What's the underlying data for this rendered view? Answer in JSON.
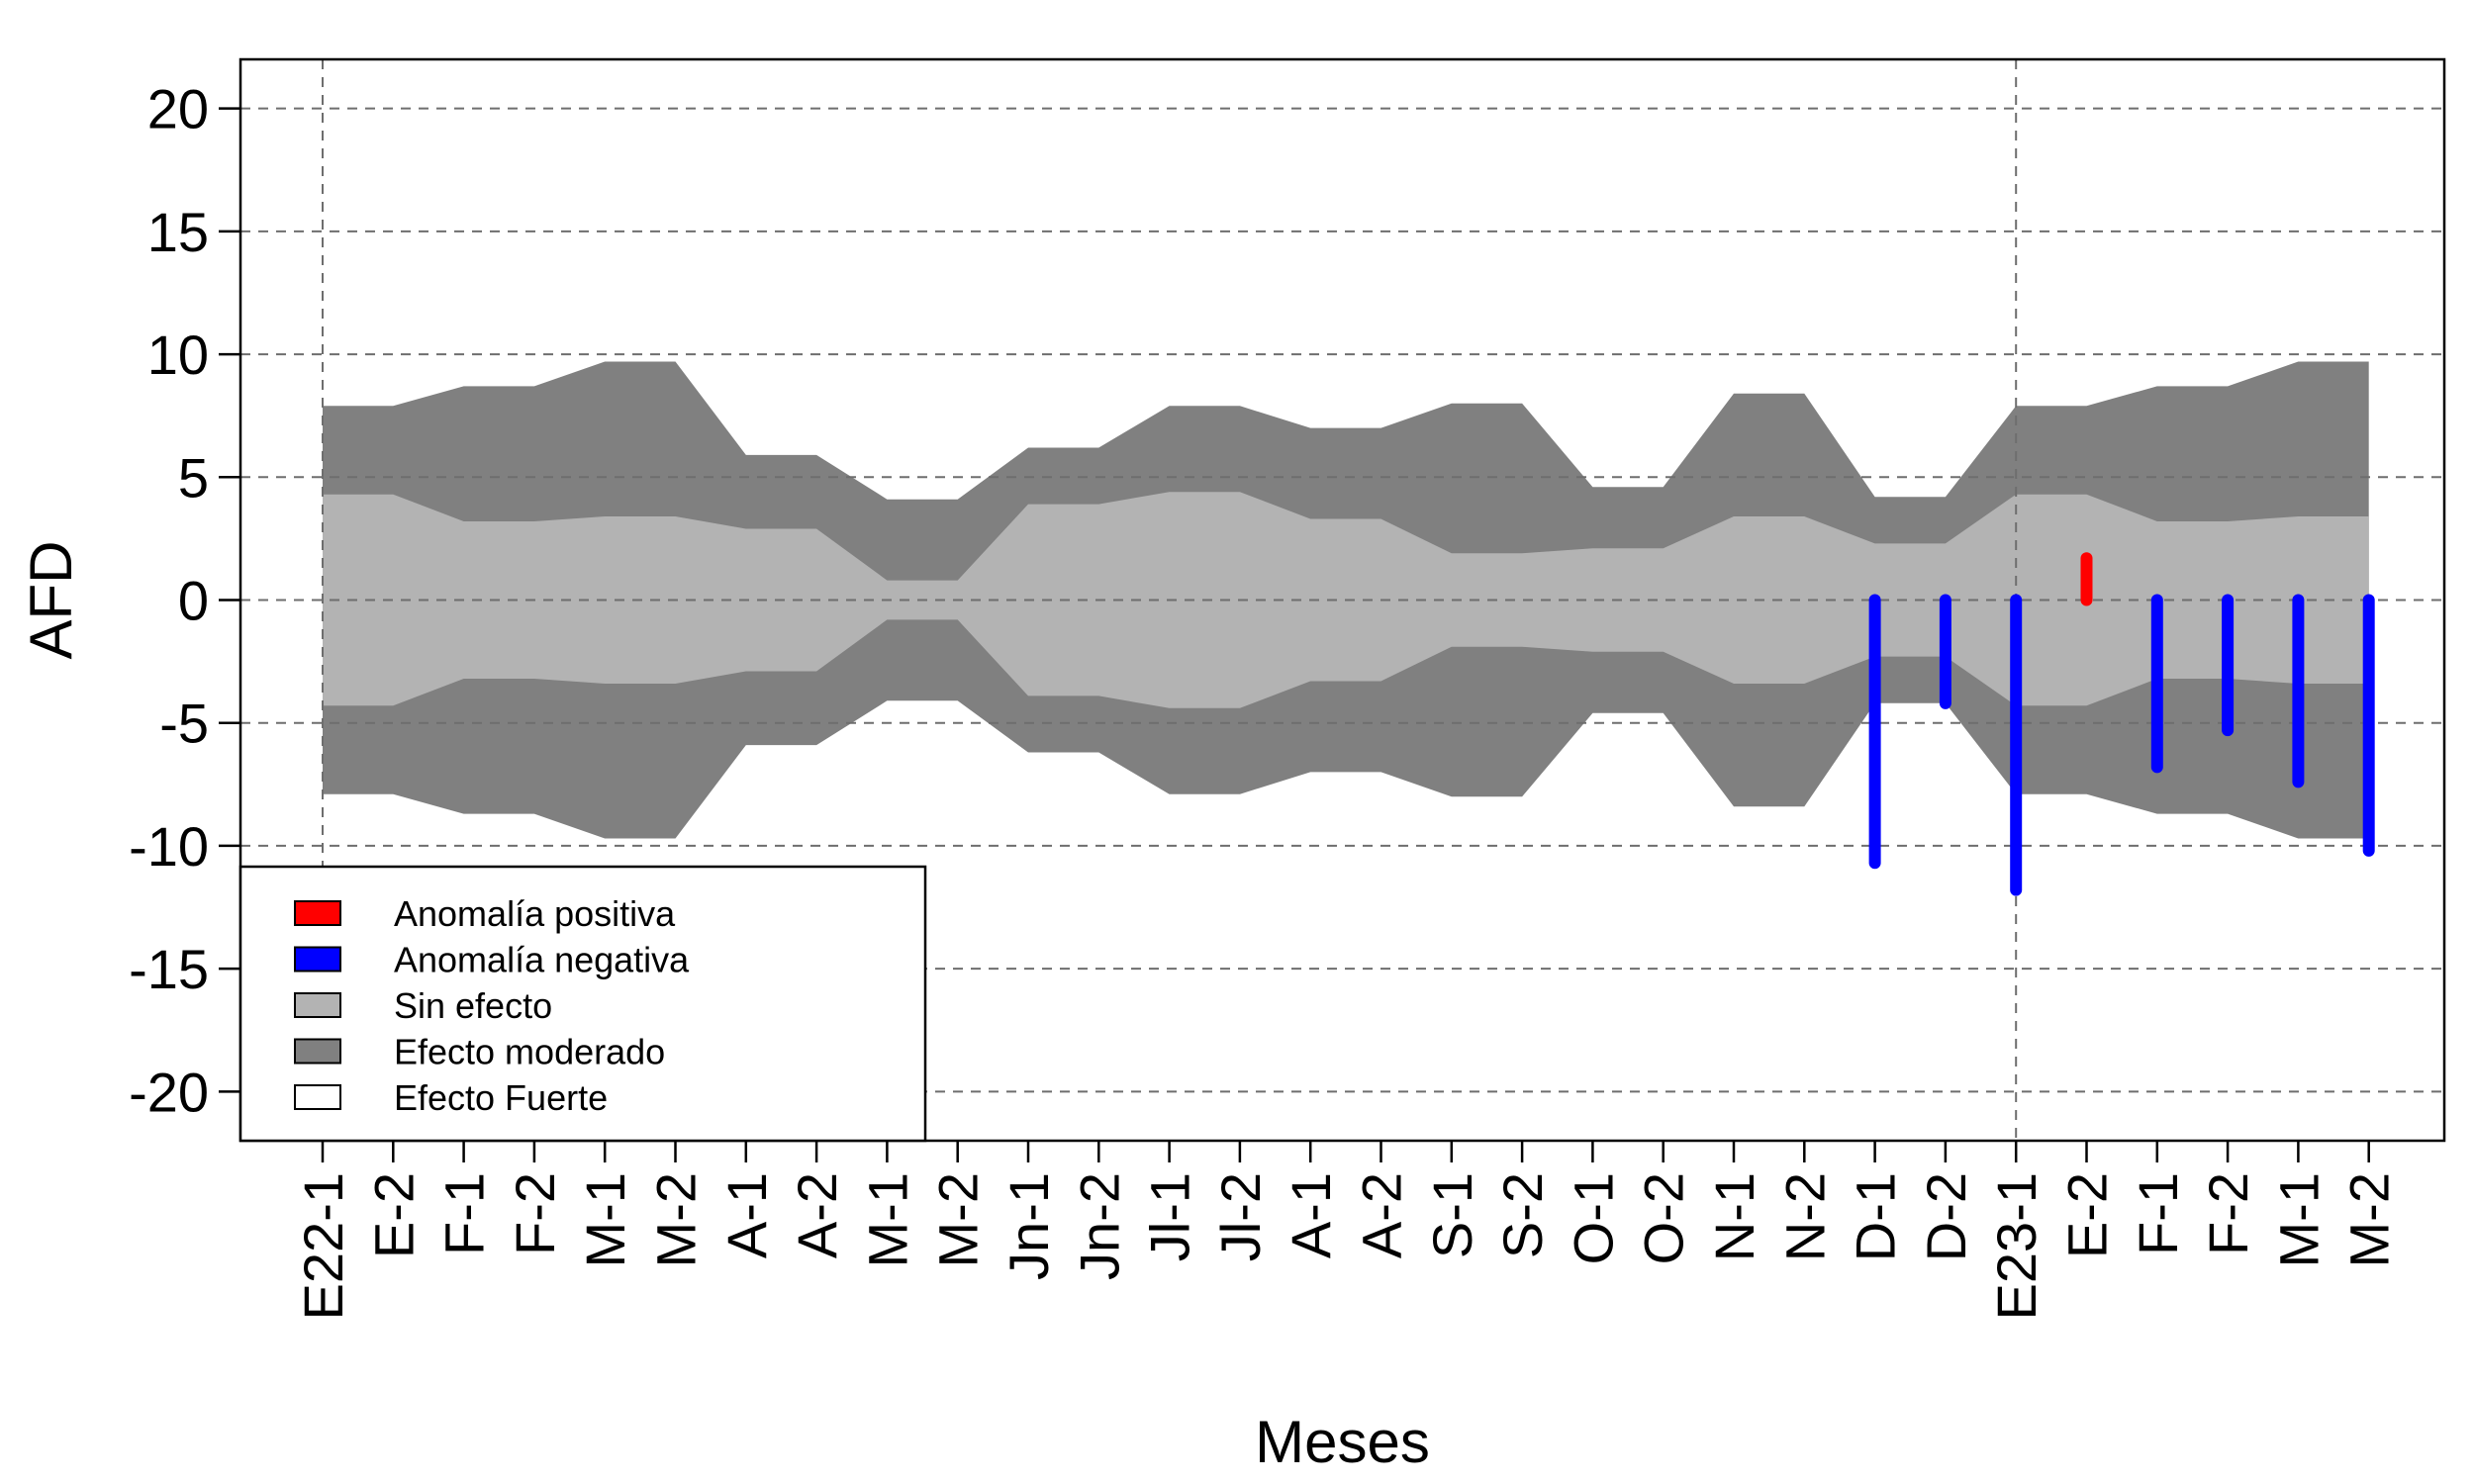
{
  "chart_data": {
    "type": "area",
    "xlabel": "Meses",
    "ylabel": "AFD",
    "ylim": [
      -22,
      22
    ],
    "yticks": [
      -20,
      -15,
      -10,
      -5,
      0,
      5,
      10,
      15,
      20
    ],
    "ytick_labels": [
      "-20",
      "-15",
      "-10",
      "-5",
      "0",
      "5",
      "10",
      "15",
      "20"
    ],
    "grid": "dashed",
    "categories": [
      "E22-1",
      "E-2",
      "F-1",
      "F-2",
      "M-1",
      "M-2",
      "A-1",
      "A-2",
      "M-1",
      "M-2",
      "Jn-1",
      "Jn-2",
      "Jl-1",
      "Jl-2",
      "A-1",
      "A-2",
      "S-1",
      "S-2",
      "O-1",
      "O-2",
      "N-1",
      "N-2",
      "D-1",
      "D-2",
      "E23-1",
      "E-2",
      "F-1",
      "F-2",
      "M-1",
      "M-2"
    ],
    "vertical_reference_lines": [
      "E22-1",
      "E23-1"
    ],
    "bands": {
      "sin_efecto": [
        4.3,
        4.3,
        3.2,
        3.2,
        3.4,
        3.4,
        2.9,
        2.9,
        0.8,
        0.8,
        3.9,
        3.9,
        4.4,
        4.4,
        3.3,
        3.3,
        1.9,
        1.9,
        2.1,
        2.1,
        3.4,
        3.4,
        2.3,
        2.3,
        4.3,
        4.3,
        3.2,
        3.2,
        3.4,
        3.4
      ],
      "efecto_moderado": [
        7.9,
        7.9,
        8.7,
        8.7,
        9.7,
        9.7,
        5.9,
        5.9,
        4.1,
        4.1,
        6.2,
        6.2,
        7.9,
        7.9,
        7.0,
        7.0,
        8.0,
        8.0,
        4.6,
        4.6,
        8.4,
        8.4,
        4.2,
        4.2,
        7.9,
        7.9,
        8.7,
        8.7,
        9.7,
        9.7
      ]
    },
    "anomalies": {
      "positive": [
        {
          "category_index": 25,
          "value": 1.7
        }
      ],
      "negative": [
        {
          "category_index": 22,
          "value": -10.7
        },
        {
          "category_index": 23,
          "value": -4.2
        },
        {
          "category_index": 24,
          "value": -11.8
        },
        {
          "category_index": 26,
          "value": -6.8
        },
        {
          "category_index": 27,
          "value": -5.3
        },
        {
          "category_index": 28,
          "value": -7.4
        },
        {
          "category_index": 29,
          "value": -10.2
        }
      ]
    },
    "legend": {
      "position": "bottom-left",
      "entries": [
        {
          "label": "Anomalía positiva",
          "color": "#ff0000"
        },
        {
          "label": "Anomalía negativa",
          "color": "#0000ff"
        },
        {
          "label": "Sin efecto",
          "color": "#b3b3b3"
        },
        {
          "label": "Efecto moderado",
          "color": "#808080"
        },
        {
          "label": "Efecto Fuerte",
          "color": "#ffffff"
        }
      ]
    }
  }
}
